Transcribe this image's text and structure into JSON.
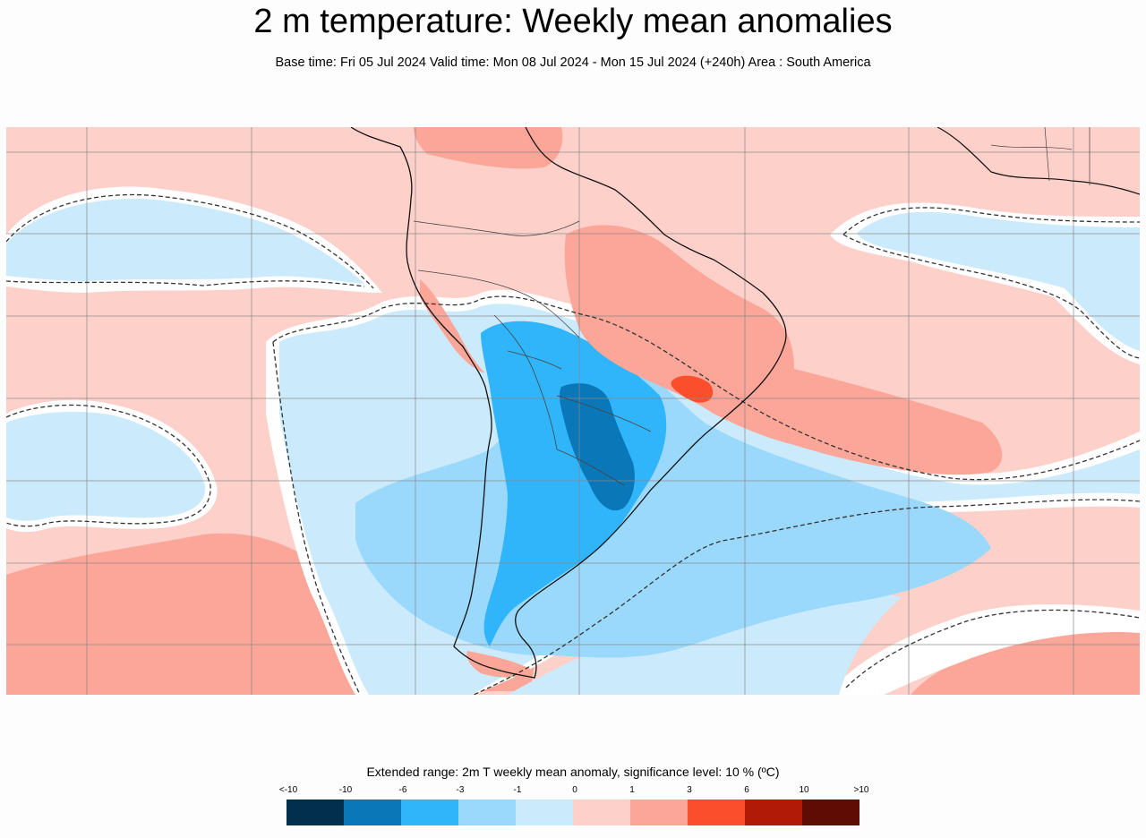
{
  "header": {
    "title": "2 m temperature: Weekly mean anomalies",
    "subtitle": "Base time: Fri 05 Jul 2024 Valid time: Mon 08 Jul 2024 - Mon 15 Jul 2024 (+240h) Area : South America"
  },
  "map": {
    "region": "South America",
    "colors": {
      "ocean_warm_1": "#fdd0c9",
      "warm_1_3": "#fba698",
      "warm_3_6": "#fb4e2d",
      "neutral": "#ffffff",
      "cool_1_0": "#cbeafc",
      "cool_3_1": "#9ad9fb",
      "cool_6_3": "#30b4fa",
      "cool_10_6": "#0a77b8",
      "coast": "#111111",
      "border": "#444444",
      "grid": "#888888"
    }
  },
  "legend": {
    "title": "Extended range: 2m T weekly mean anomaly, significance level: 10 % (ºC)",
    "ticks": [
      "<-10",
      "-10",
      "-6",
      "-3",
      "-1",
      "0",
      "1",
      "3",
      "6",
      "10",
      ">10"
    ],
    "colors": [
      "#012f4c",
      "#0a77b8",
      "#30b4fa",
      "#9ad9fb",
      "#cbeafc",
      "#fdd0c9",
      "#fba698",
      "#fb4e2d",
      "#b01a06",
      "#5e0c04"
    ]
  }
}
